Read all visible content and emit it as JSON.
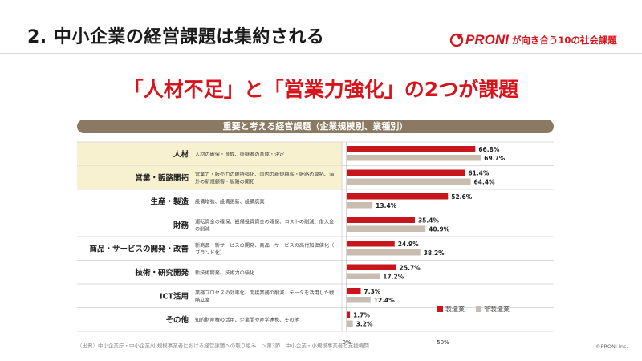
{
  "slide": {
    "title": "2.  中小企業の経営課題は集約される",
    "headline": "「人材不足」と「営業力強化」の2つが課題",
    "brand": "PRONI",
    "tagline": "が向き合う10の社会課題",
    "source_note": "（出典）中小企業庁・中小企業/小規模事業者における経営課題への取り組み　＞第3節　中小企業・小規模事業者と支援機関",
    "copyright": "©PRONI Inc."
  },
  "colors": {
    "accent_red": "#d7131b",
    "bar_manufacturing": "#c8161d",
    "bar_non_manufacturing": "#c9bcb0",
    "banner": "#8b7a63",
    "highlight_row": "#f8f1cf"
  },
  "chart_data": {
    "type": "bar",
    "orientation": "horizontal",
    "title": "重要と考える経営課題（企業規模別、業種別）",
    "categories": [
      "人材",
      "営業・販路開拓",
      "生産・製造",
      "財務",
      "商品・サービスの開発・改善",
      "技術・研究開発",
      "ICT活用",
      "その他"
    ],
    "descriptions": [
      "人材の確保・育成、後継者の育成・決定",
      "営業力・販売力の維持強化、国内の新規顧客・販路の開拓、海外の新規顧客・販路の開拓",
      "設備増強、設備更新、設備廃棄",
      "運転資金の確保、設備投資資金の確保、コストの削減、借入金の削減",
      "新商品・新サービスの開発、商品・サービスの高付加価値化（ブランド化）",
      "新技術開発、技術力の強化",
      "業務プロセスの効率化、間接業務の削減、データを活用した戦略立案",
      "知的財産権の活用、企業間や産学連携、その他"
    ],
    "highlighted_rows": [
      "人材",
      "営業・販路開拓"
    ],
    "series": [
      {
        "name": "製造業",
        "values": [
          66.8,
          61.4,
          52.6,
          35.4,
          24.9,
          25.7,
          7.3,
          1.7
        ]
      },
      {
        "name": "非製造業",
        "values": [
          69.7,
          64.4,
          13.4,
          40.9,
          38.2,
          17.2,
          12.4,
          3.2
        ]
      }
    ],
    "value_suffix": "%",
    "x_ticks": [
      "0%",
      "50%"
    ],
    "xlim": [
      0,
      100
    ],
    "legend_position": "bottom-right",
    "grid": false
  }
}
